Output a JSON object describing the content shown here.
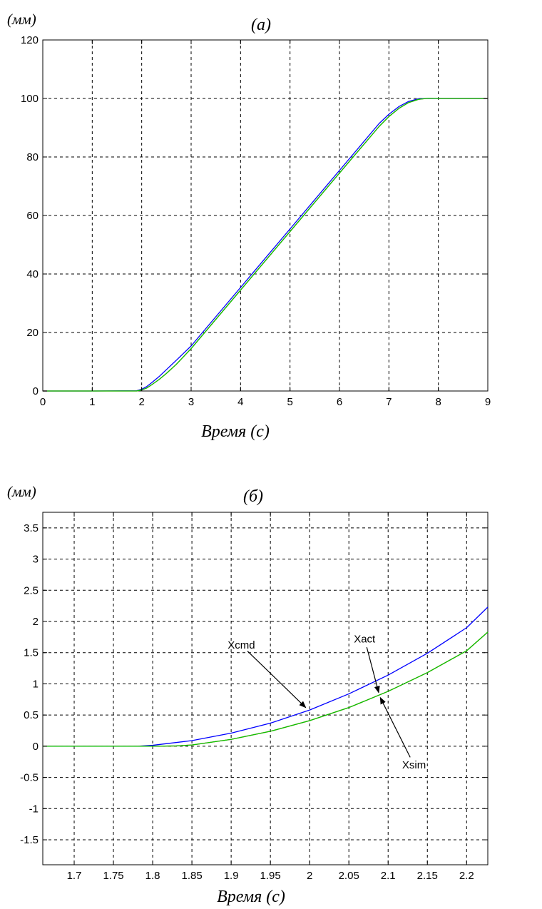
{
  "chart_data": [
    {
      "type": "line",
      "panel_label": "(а)",
      "y_unit": "(мм)",
      "xlabel": "Время (с)",
      "xlim": [
        0,
        9
      ],
      "ylim": [
        0,
        120
      ],
      "x_ticks": [
        0,
        1,
        2,
        3,
        4,
        5,
        6,
        7,
        8,
        9
      ],
      "y_ticks": [
        0,
        20,
        40,
        60,
        80,
        100,
        120
      ],
      "grid": true,
      "series": [
        {
          "color": "#0000ff",
          "x": [
            0,
            1,
            1.9,
            2.0,
            2.1,
            2.2,
            2.35,
            2.5,
            2.7,
            3.0,
            4.0,
            5.0,
            6.0,
            6.8,
            7.0,
            7.2,
            7.4,
            7.6,
            7.75,
            8.0,
            9.0
          ],
          "y": [
            0,
            0,
            0.1,
            0.6,
            1.5,
            2.8,
            4.9,
            7.3,
            10.5,
            15.4,
            35.4,
            55.4,
            75.4,
            91.4,
            94.6,
            97.2,
            99.0,
            99.9,
            100.0,
            100.0,
            100.0
          ]
        },
        {
          "color": "#ff0000",
          "x": [
            0,
            1,
            1.9,
            2.0,
            2.1,
            2.2,
            2.35,
            2.5,
            2.7,
            3.0,
            4.0,
            5.0,
            6.0,
            6.8,
            7.0,
            7.2,
            7.4,
            7.6,
            7.8,
            8.0,
            9.0
          ],
          "y": [
            0,
            0,
            0,
            0.35,
            1.0,
            2.1,
            3.9,
            6.0,
            9.1,
            14.5,
            34.5,
            54.5,
            74.5,
            90.4,
            93.8,
            96.6,
            98.6,
            99.7,
            100.1,
            100.0,
            100.0
          ]
        },
        {
          "color": "#00cc00",
          "x": [
            0,
            1,
            1.9,
            2.0,
            2.1,
            2.2,
            2.35,
            2.5,
            2.7,
            3.0,
            4.0,
            5.0,
            6.0,
            6.8,
            7.0,
            7.2,
            7.4,
            7.6,
            7.8,
            8.0,
            9.0
          ],
          "y": [
            0,
            0,
            0,
            0.35,
            1.0,
            2.1,
            3.9,
            6.0,
            9.1,
            14.5,
            34.5,
            54.5,
            74.5,
            90.4,
            93.8,
            96.6,
            98.6,
            99.7,
            100.1,
            100.0,
            100.0
          ]
        }
      ]
    },
    {
      "type": "line",
      "panel_label": "(б)",
      "y_unit": "(мм)",
      "xlabel": "Время (с)",
      "xlim": [
        1.66,
        2.227
      ],
      "ylim": [
        -1.9,
        3.75
      ],
      "x_ticks": [
        1.7,
        1.75,
        1.8,
        1.85,
        1.9,
        1.95,
        2,
        2.05,
        2.1,
        2.15,
        2.2
      ],
      "x_tick_labels": [
        "1.7",
        "1.75",
        "1.8",
        "1.85",
        "1.9",
        "1.95",
        "2",
        "2.05",
        "2.1",
        "2.15",
        "2.2"
      ],
      "y_ticks": [
        -1.5,
        -1,
        -0.5,
        0,
        0.5,
        1,
        1.5,
        2,
        2.5,
        3,
        3.5
      ],
      "y_tick_labels": [
        "-1.5",
        "-1",
        "-0.5",
        "0",
        "0.5",
        "1",
        "1.5",
        "2",
        "2.5",
        "3",
        "3.5"
      ],
      "grid": true,
      "series": [
        {
          "color": "#0000ff",
          "x": [
            1.66,
            1.78,
            1.8,
            1.85,
            1.9,
            1.95,
            2.0,
            2.05,
            2.1,
            2.15,
            2.2,
            2.227
          ],
          "y": [
            0,
            0,
            0.015,
            0.09,
            0.21,
            0.37,
            0.58,
            0.84,
            1.14,
            1.49,
            1.9,
            2.23
          ]
        },
        {
          "color": "#ff0000",
          "x": [
            1.66,
            1.8,
            1.83,
            1.85,
            1.9,
            1.95,
            2.0,
            2.05,
            2.1,
            2.15,
            2.2,
            2.227
          ],
          "y": [
            0,
            0,
            0.005,
            0.02,
            0.11,
            0.24,
            0.41,
            0.62,
            0.88,
            1.18,
            1.53,
            1.83
          ]
        },
        {
          "color": "#00cc00",
          "x": [
            1.66,
            1.8,
            1.83,
            1.85,
            1.9,
            1.95,
            2.0,
            2.05,
            2.1,
            2.15,
            2.2,
            2.227
          ],
          "y": [
            0,
            0,
            0.005,
            0.02,
            0.11,
            0.24,
            0.41,
            0.62,
            0.88,
            1.18,
            1.53,
            1.83
          ]
        }
      ],
      "annotations": [
        {
          "text": "Xcmd",
          "label_at": [
            1.913,
            1.62
          ],
          "arrow_to": [
            1.995,
            0.62
          ]
        },
        {
          "text": "Xact",
          "label_at": [
            2.07,
            1.72
          ],
          "arrow_to": [
            2.088,
            0.86
          ]
        },
        {
          "text": "Xsim",
          "label_at": [
            2.133,
            -0.3
          ],
          "arrow_to": [
            2.09,
            0.78
          ]
        }
      ]
    }
  ]
}
